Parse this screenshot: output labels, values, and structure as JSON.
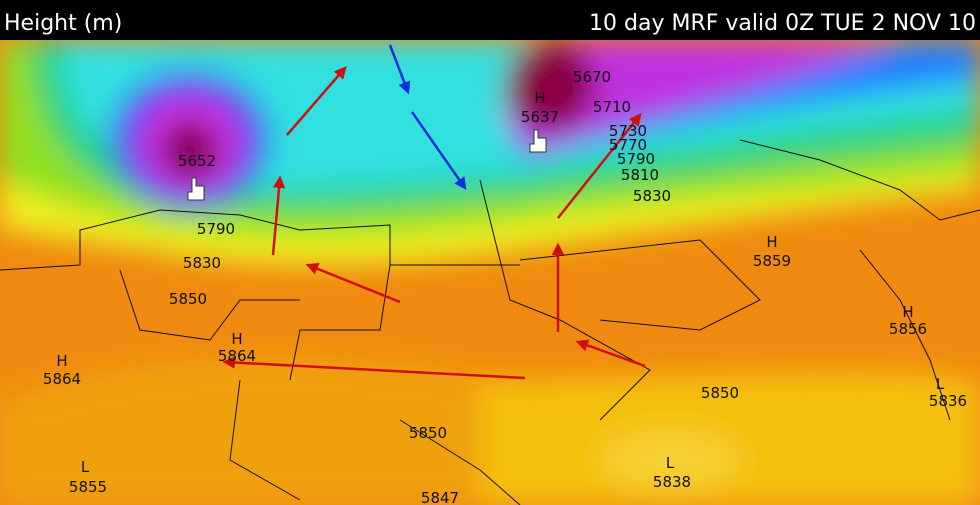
{
  "header": {
    "title": "Height (m)",
    "valid": "10 day MRF valid 0Z TUE 2 NOV 10"
  },
  "map": {
    "labels": [
      "5652",
      "H",
      "5637",
      "5670",
      "5710",
      "5730",
      "5770",
      "5790",
      "5810",
      "5830",
      "5790",
      "5830",
      "5850",
      "H",
      "5864",
      "H",
      "5864",
      "H",
      "5859",
      "H",
      "5856",
      "L",
      "5836",
      "5850",
      "5850",
      "L",
      "5855",
      "L",
      "5838",
      "5847"
    ]
  }
}
